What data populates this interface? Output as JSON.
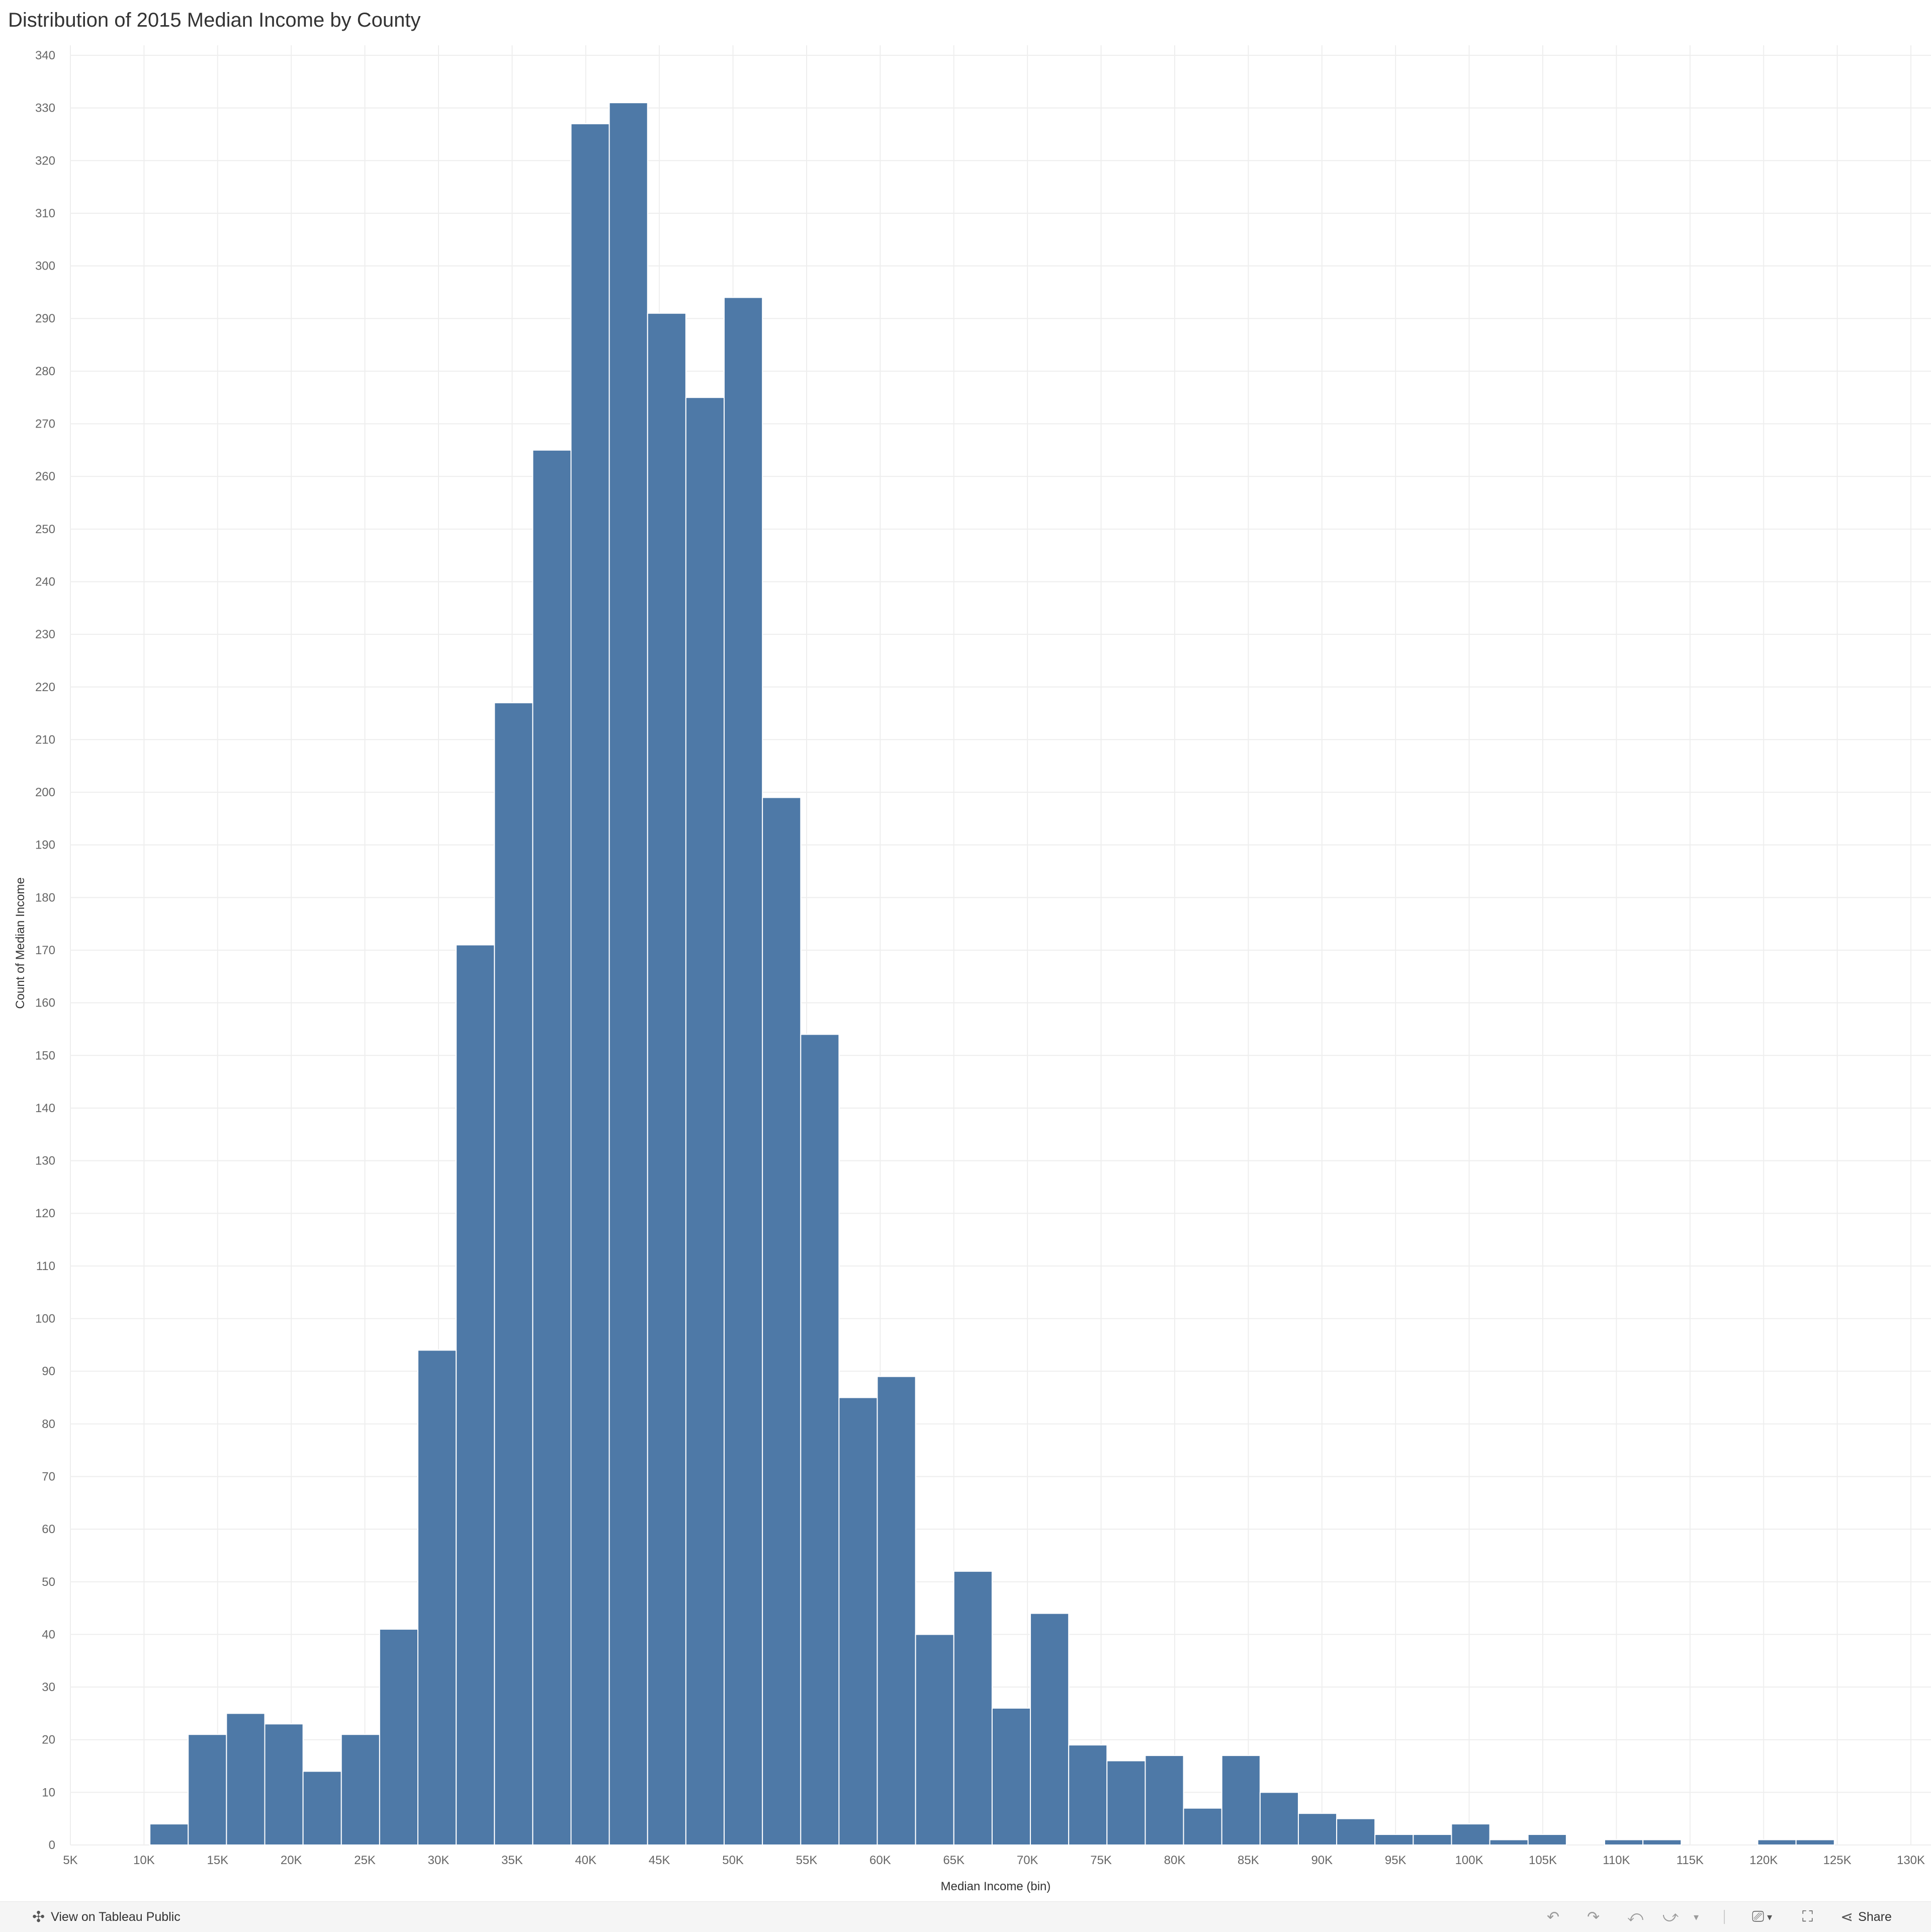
{
  "title": "Distribution of 2015 Median Income by County",
  "colors": {
    "bar": "#4e79a7",
    "bar_edge": "#ffffff",
    "grid": "#eeeeee",
    "tick_text": "#666666",
    "label_text": "#333333"
  },
  "chart_data": {
    "type": "bar",
    "title": "Distribution of 2015 Median Income by County",
    "xlabel": "Median Income (bin)",
    "ylabel": "Count of Median Income",
    "bin_width": 2600,
    "bins": [
      {
        "start": 10400,
        "count": 4
      },
      {
        "start": 13000,
        "count": 21
      },
      {
        "start": 15600,
        "count": 25
      },
      {
        "start": 18200,
        "count": 23
      },
      {
        "start": 20800,
        "count": 14
      },
      {
        "start": 23400,
        "count": 21
      },
      {
        "start": 26000,
        "count": 41
      },
      {
        "start": 28600,
        "count": 94
      },
      {
        "start": 31200,
        "count": 171
      },
      {
        "start": 33800,
        "count": 217
      },
      {
        "start": 36400,
        "count": 265
      },
      {
        "start": 39000,
        "count": 327
      },
      {
        "start": 41600,
        "count": 331
      },
      {
        "start": 44200,
        "count": 291
      },
      {
        "start": 46800,
        "count": 275
      },
      {
        "start": 49400,
        "count": 294
      },
      {
        "start": 52000,
        "count": 199
      },
      {
        "start": 54600,
        "count": 154
      },
      {
        "start": 57200,
        "count": 85
      },
      {
        "start": 59800,
        "count": 89
      },
      {
        "start": 62400,
        "count": 40
      },
      {
        "start": 65000,
        "count": 52
      },
      {
        "start": 67600,
        "count": 26
      },
      {
        "start": 70200,
        "count": 44
      },
      {
        "start": 72800,
        "count": 19
      },
      {
        "start": 75400,
        "count": 16
      },
      {
        "start": 78000,
        "count": 17
      },
      {
        "start": 80600,
        "count": 7
      },
      {
        "start": 83200,
        "count": 17
      },
      {
        "start": 85800,
        "count": 10
      },
      {
        "start": 88400,
        "count": 6
      },
      {
        "start": 91000,
        "count": 5
      },
      {
        "start": 93600,
        "count": 2
      },
      {
        "start": 96200,
        "count": 2
      },
      {
        "start": 98800,
        "count": 4
      },
      {
        "start": 101400,
        "count": 1
      },
      {
        "start": 104000,
        "count": 2
      },
      {
        "start": 109200,
        "count": 1
      },
      {
        "start": 111800,
        "count": 1
      },
      {
        "start": 119600,
        "count": 1
      },
      {
        "start": 122200,
        "count": 1
      }
    ],
    "x_ticks": [
      {
        "value": 5000,
        "label": "5K"
      },
      {
        "value": 10000,
        "label": "10K"
      },
      {
        "value": 15000,
        "label": "15K"
      },
      {
        "value": 20000,
        "label": "20K"
      },
      {
        "value": 25000,
        "label": "25K"
      },
      {
        "value": 30000,
        "label": "30K"
      },
      {
        "value": 35000,
        "label": "35K"
      },
      {
        "value": 40000,
        "label": "40K"
      },
      {
        "value": 45000,
        "label": "45K"
      },
      {
        "value": 50000,
        "label": "50K"
      },
      {
        "value": 55000,
        "label": "55K"
      },
      {
        "value": 60000,
        "label": "60K"
      },
      {
        "value": 65000,
        "label": "65K"
      },
      {
        "value": 70000,
        "label": "70K"
      },
      {
        "value": 75000,
        "label": "75K"
      },
      {
        "value": 80000,
        "label": "80K"
      },
      {
        "value": 85000,
        "label": "85K"
      },
      {
        "value": 90000,
        "label": "90K"
      },
      {
        "value": 95000,
        "label": "95K"
      },
      {
        "value": 100000,
        "label": "100K"
      },
      {
        "value": 105000,
        "label": "105K"
      },
      {
        "value": 110000,
        "label": "110K"
      },
      {
        "value": 115000,
        "label": "115K"
      },
      {
        "value": 120000,
        "label": "120K"
      },
      {
        "value": 125000,
        "label": "125K"
      },
      {
        "value": 130000,
        "label": "130K"
      }
    ],
    "y_ticks": [
      0,
      10,
      20,
      30,
      40,
      50,
      60,
      70,
      80,
      90,
      100,
      110,
      120,
      130,
      140,
      150,
      160,
      170,
      180,
      190,
      200,
      210,
      220,
      230,
      240,
      250,
      260,
      270,
      280,
      290,
      300,
      310,
      320,
      330,
      340
    ],
    "xlim": [
      5000,
      130000
    ],
    "ylim": [
      0,
      340
    ],
    "grid": true,
    "legend": "none"
  },
  "toolbar": {
    "view_on_tableau": "View on Tableau Public",
    "share": "Share",
    "icons": {
      "tableau_logo": "tableau-logo-icon",
      "undo": "undo-icon",
      "redo": "redo-icon",
      "revert": "revert-icon",
      "refresh": "refresh-icon",
      "dropdown": "chevron-down-icon",
      "download": "download-icon",
      "fullscreen": "fullscreen-icon",
      "share": "share-icon"
    }
  }
}
